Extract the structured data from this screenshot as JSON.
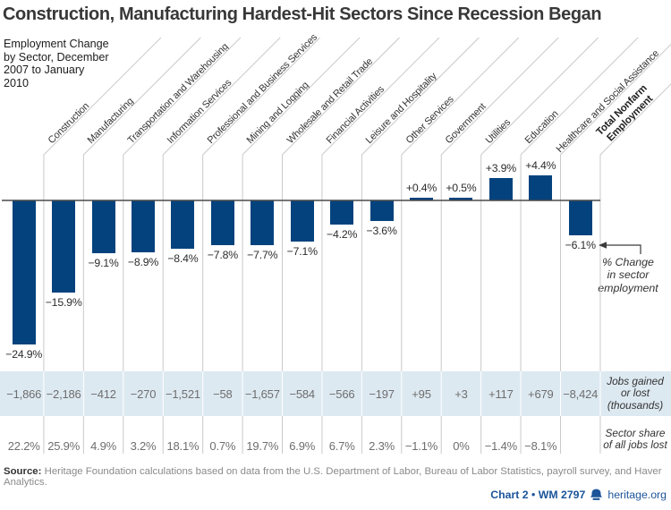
{
  "chart_data": {
    "type": "bar",
    "title": "Construction, Manufacturing Hardest-Hit Sectors Since Recession Began",
    "subtitle": "Employment Change\nby Sector, December\n2007 to January\n2010",
    "categories": [
      "Construction",
      "Manufacturing",
      "Transportation and Warehousing",
      "Information Services",
      "Professional and Business Services",
      "Mining and Logging",
      "Wholesale and Retail Trade",
      "Financial Activities",
      "Leisure and Hospitality",
      "Other Services",
      "Government",
      "Utilities",
      "Education",
      "Healthcare and Social Assistance",
      "Total Nonfarm Employment"
    ],
    "display": {
      "category_labels": [
        "Construction",
        "Manufacturing",
        "Transportation and Warehousing",
        "Information Services",
        "Professional and Business Services",
        "Mining and Logging",
        "Wholesale and Retail Trade",
        "Financial Activities",
        "Leisure and Hospitality",
        "Other Services",
        "Government",
        "Utilities",
        "Education",
        "Healthcare and Social Assistance",
        "Total Nonfarm\nEmployment"
      ],
      "bold_category_index": 14
    },
    "series": [
      {
        "name": "% Change in sector employment",
        "values": [
          -24.9,
          -15.9,
          -9.1,
          -8.9,
          -8.4,
          -7.8,
          -7.7,
          -7.1,
          -4.2,
          -3.6,
          0.4,
          0.5,
          3.9,
          4.4,
          -6.1
        ],
        "labels": [
          "−24.9%",
          "−15.9%",
          "−9.1%",
          "−8.9%",
          "−8.4%",
          "−7.8%",
          "−7.7%",
          "−7.1%",
          "−4.2%",
          "−3.6%",
          "+0.4%",
          "+0.5%",
          "+3.9%",
          "+4.4%",
          "−6.1%"
        ]
      },
      {
        "name": "Jobs gained or lost (thousands)",
        "values": [
          -1866,
          -2186,
          -412,
          -270,
          -1521,
          -58,
          -1657,
          -584,
          -566,
          -197,
          95,
          3,
          117,
          679,
          -8424
        ],
        "labels": [
          "−1,866",
          "−2,186",
          "−412",
          "−270",
          "−1,521",
          "−58",
          "−1,657",
          "−584",
          "−566",
          "−197",
          "+95",
          "+3",
          "+117",
          "+679",
          "−8,424"
        ]
      },
      {
        "name": "Sector share of all jobs lost",
        "values": [
          22.2,
          25.9,
          4.9,
          3.2,
          18.1,
          0.7,
          19.7,
          6.9,
          6.7,
          2.3,
          -1.1,
          0,
          -1.4,
          -8.1,
          null
        ],
        "labels": [
          "22.2%",
          "25.9%",
          "4.9%",
          "3.2%",
          "18.1%",
          "0.7%",
          "19.7%",
          "6.9%",
          "6.7%",
          "2.3%",
          "−1.1%",
          "0%",
          "−1.4%",
          "−8.1%",
          ""
        ]
      }
    ],
    "ylim": [
      -26,
      6
    ],
    "grid": false,
    "legend_position": "none"
  },
  "annotation": "% Change\nin sector\nemployment",
  "row_labels": {
    "jobs": "Jobs gained\nor lost\n(thousands)",
    "share": "Sector share\nof all jobs lost"
  },
  "source": {
    "label": "Source:",
    "text": " Heritage Foundation calculations based on data from the U.S. Department of Labor, Bureau of Labor Statistics, payroll survey, and Haver Analytics."
  },
  "footer": {
    "chart_ref": "Chart 2 • WM 2797",
    "site": "heritage.org",
    "bell_icon": "heritage-liberty-bell"
  },
  "colors": {
    "bar": "#04427d",
    "band": "#dde9f1",
    "separator": "#c9c9c9",
    "rule": "#4a4a4a",
    "footer_blue": "#1b5499",
    "text_dark": "#2c2c2c",
    "text_gray": "#6e6e6e"
  }
}
